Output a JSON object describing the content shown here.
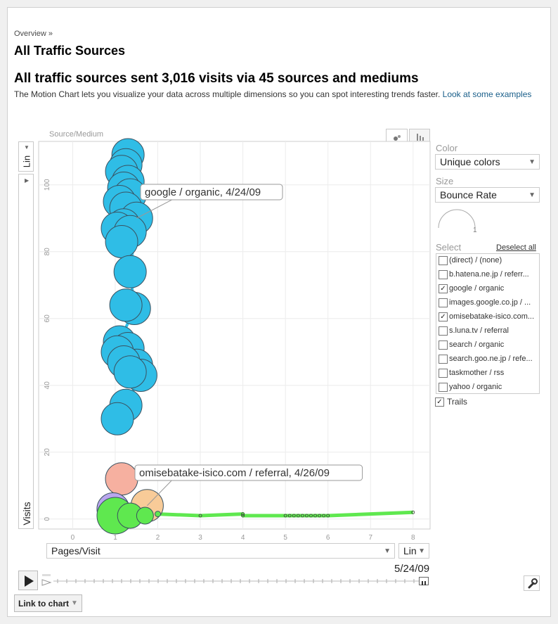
{
  "breadcrumb": "Overview »",
  "page_title": "All Traffic Sources",
  "headline": "All traffic sources sent 3,016 visits via 45 sources and mediums",
  "description": "The Motion Chart lets you visualize your data across multiple dimensions so you can spot interesting trends faster.",
  "description_link": "Look at some examples",
  "controls": {
    "color_label": "Color",
    "color_value": "Unique colors",
    "size_label": "Size",
    "size_value": "Bounce Rate",
    "size_scale_value": "1",
    "select_label": "Select",
    "deselect_all": "Deselect all",
    "trails_label": "Trails",
    "trails_checked": true,
    "y_scale": "Lin",
    "x_scale": "Lin",
    "x_axis_select": "Pages/Visit",
    "date": "5/24/09",
    "link_to_chart": "Link to chart"
  },
  "source_list": [
    {
      "label": "(direct) / (none)",
      "checked": false
    },
    {
      "label": "b.hatena.ne.jp / referr...",
      "checked": false
    },
    {
      "label": "google / organic",
      "checked": true
    },
    {
      "label": "images.google.co.jp / ...",
      "checked": false
    },
    {
      "label": "omisebatake-isico.com...",
      "checked": true
    },
    {
      "label": "s.luna.tv / referral",
      "checked": false
    },
    {
      "label": "search / organic",
      "checked": false
    },
    {
      "label": "search.goo.ne.jp / refe...",
      "checked": false
    },
    {
      "label": "taskmother / rss",
      "checked": false
    },
    {
      "label": "yahoo / organic",
      "checked": false
    }
  ],
  "colors": {
    "google": "#2fbde6",
    "omisebatake": "#5fe84f",
    "salmon": "#f6b0a0",
    "peach": "#f8cb98",
    "purple": "#b9a6ee"
  },
  "chart_data": {
    "type": "scatter",
    "title": "",
    "legend_label": "Source/Medium",
    "xlabel": "Pages/Visit",
    "ylabel": "Visits",
    "xlim": [
      -0.8,
      8.4
    ],
    "ylim": [
      -3,
      113
    ],
    "x_ticks": [
      0,
      1,
      2,
      3,
      4,
      5,
      6,
      7,
      8
    ],
    "y_ticks": [
      0,
      20,
      40,
      60,
      80,
      100
    ],
    "series": [
      {
        "name": "google / organic",
        "color": "#2fbde6",
        "tooltip": "google / organic, 4/24/09",
        "points": [
          [
            1.3,
            109
          ],
          [
            1.25,
            106
          ],
          [
            1.15,
            104
          ],
          [
            1.3,
            101
          ],
          [
            1.2,
            99
          ],
          [
            1.35,
            97
          ],
          [
            1.1,
            95
          ],
          [
            1.25,
            93
          ],
          [
            1.5,
            90
          ],
          [
            1.2,
            88
          ],
          [
            1.05,
            87
          ],
          [
            1.35,
            86
          ],
          [
            1.15,
            83
          ],
          [
            1.35,
            74
          ],
          [
            1.45,
            63
          ],
          [
            1.25,
            64
          ],
          [
            1.1,
            53
          ],
          [
            1.3,
            51
          ],
          [
            1.05,
            50
          ],
          [
            1.5,
            46
          ],
          [
            1.2,
            47
          ],
          [
            1.6,
            43
          ],
          [
            1.35,
            44
          ],
          [
            1.25,
            34
          ],
          [
            1.05,
            30
          ]
        ],
        "trail_points": [
          [
            1.3,
            109
          ],
          [
            1.2,
            99
          ],
          [
            1.5,
            90
          ],
          [
            1.35,
            74
          ],
          [
            1.45,
            63
          ],
          [
            1.1,
            53
          ],
          [
            1.6,
            43
          ],
          [
            1.25,
            34
          ],
          [
            1.05,
            30
          ]
        ]
      },
      {
        "name": "omisebatake-isico.com / referral",
        "color": "#5fe84f",
        "tooltip": "omisebatake-isico.com / referral, 4/26/09",
        "points": [
          [
            1.0,
            1
          ],
          [
            1.35,
            1
          ],
          [
            1.7,
            1
          ],
          [
            2.0,
            1.5
          ]
        ],
        "trail_points": [
          [
            2.0,
            1.5
          ],
          [
            3.0,
            1
          ],
          [
            4.0,
            1.5
          ],
          [
            4.0,
            1
          ],
          [
            5.0,
            1
          ],
          [
            5.1,
            1
          ],
          [
            5.2,
            1
          ],
          [
            5.3,
            1
          ],
          [
            5.4,
            1
          ],
          [
            5.5,
            1
          ],
          [
            5.6,
            1
          ],
          [
            5.7,
            1
          ],
          [
            5.8,
            1
          ],
          [
            5.9,
            1
          ],
          [
            6.0,
            1
          ],
          [
            8.0,
            2
          ]
        ]
      },
      {
        "name": "",
        "color": "#f6b0a0",
        "points": [
          [
            1.15,
            12
          ]
        ]
      },
      {
        "name": "",
        "color": "#f8cb98",
        "points": [
          [
            1.75,
            4
          ]
        ]
      },
      {
        "name": "",
        "color": "#b9a6ee",
        "points": [
          [
            0.95,
            3
          ]
        ]
      }
    ]
  }
}
